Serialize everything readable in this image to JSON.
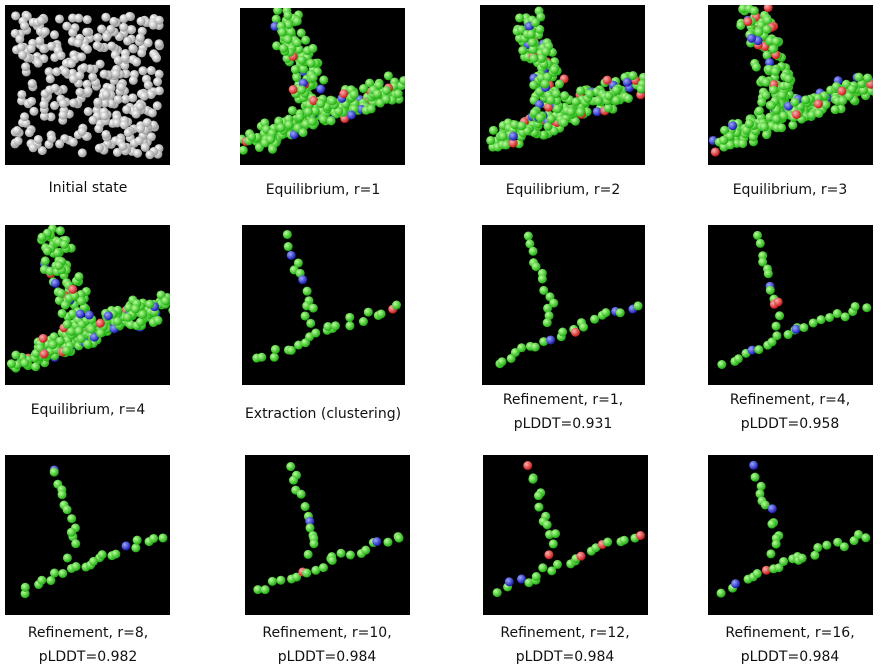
{
  "panels": [
    {
      "caption": [
        "Initial state"
      ]
    },
    {
      "caption": [
        "Equilibrium, r=1"
      ]
    },
    {
      "caption": [
        "Equilibrium, r=2"
      ]
    },
    {
      "caption": [
        "Equilibrium, r=3"
      ]
    },
    {
      "caption": [
        "Equilibrium, r=4"
      ]
    },
    {
      "caption": [
        "Extraction (clustering)"
      ]
    },
    {
      "caption": [
        "Refinement, r=1,",
        "pLDDT=0.931"
      ]
    },
    {
      "caption": [
        "Refinement, r=4,",
        "pLDDT=0.958"
      ]
    },
    {
      "caption": [
        "Refinement, r=8,",
        "pLDDT=0.982"
      ]
    },
    {
      "caption": [
        "Refinement, r=10,",
        "pLDDT=0.984"
      ]
    },
    {
      "caption": [
        "Refinement, r=12,",
        "pLDDT=0.984"
      ]
    },
    {
      "caption": [
        "Refinement, r=16,",
        "pLDDT=0.984"
      ]
    }
  ]
}
